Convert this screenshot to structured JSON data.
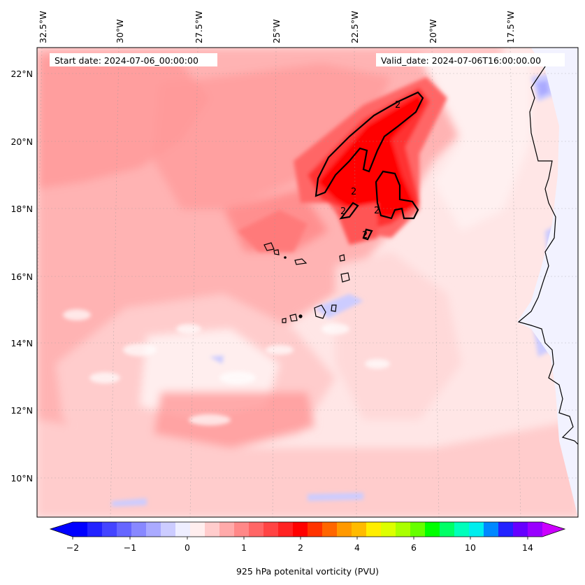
{
  "header": {
    "start_date": "Start date: 2024-07-06_00:00:00",
    "valid_date": "Valid_date: 2024-07-06T16:00:00.00"
  },
  "map": {
    "lon_labels": [
      "32.5°W",
      "30°W",
      "27.5°W",
      "25°W",
      "22.5°W",
      "20°W",
      "17.5°W"
    ],
    "lat_labels": [
      "22°N",
      "20°N",
      "18°N",
      "16°N",
      "14°N",
      "12°N",
      "10°N"
    ],
    "contour_labels": [
      "2",
      "2",
      "2",
      "2",
      "2"
    ],
    "field_base_color": "#ffe5e5",
    "coast_color": "#000000"
  },
  "colorbar": {
    "tick_labels": [
      "−2",
      "−1",
      "0",
      "1",
      "2",
      "4",
      "6",
      "10",
      "14"
    ],
    "label": "925 hPa potenital vorticity (PVU)",
    "colors": [
      "#0000ff",
      "#2222ff",
      "#4444ff",
      "#6666ff",
      "#8888ff",
      "#aaaaff",
      "#ccccff",
      "#eeeeff",
      "#ffeeee",
      "#ffcccc",
      "#ffaaaa",
      "#ff8888",
      "#ff6666",
      "#ff4444",
      "#ff2222",
      "#ff0000",
      "#ff3300",
      "#ff6600",
      "#ff9900",
      "#ffbb00",
      "#ffee00",
      "#ddff00",
      "#aaff00",
      "#66ff00",
      "#00ff00",
      "#00ff66",
      "#00ffbb",
      "#00eeee",
      "#0088ff",
      "#2222ff",
      "#6600ff",
      "#9900ff"
    ],
    "under_color": "#0000ff",
    "over_color": "#cc00ff"
  }
}
